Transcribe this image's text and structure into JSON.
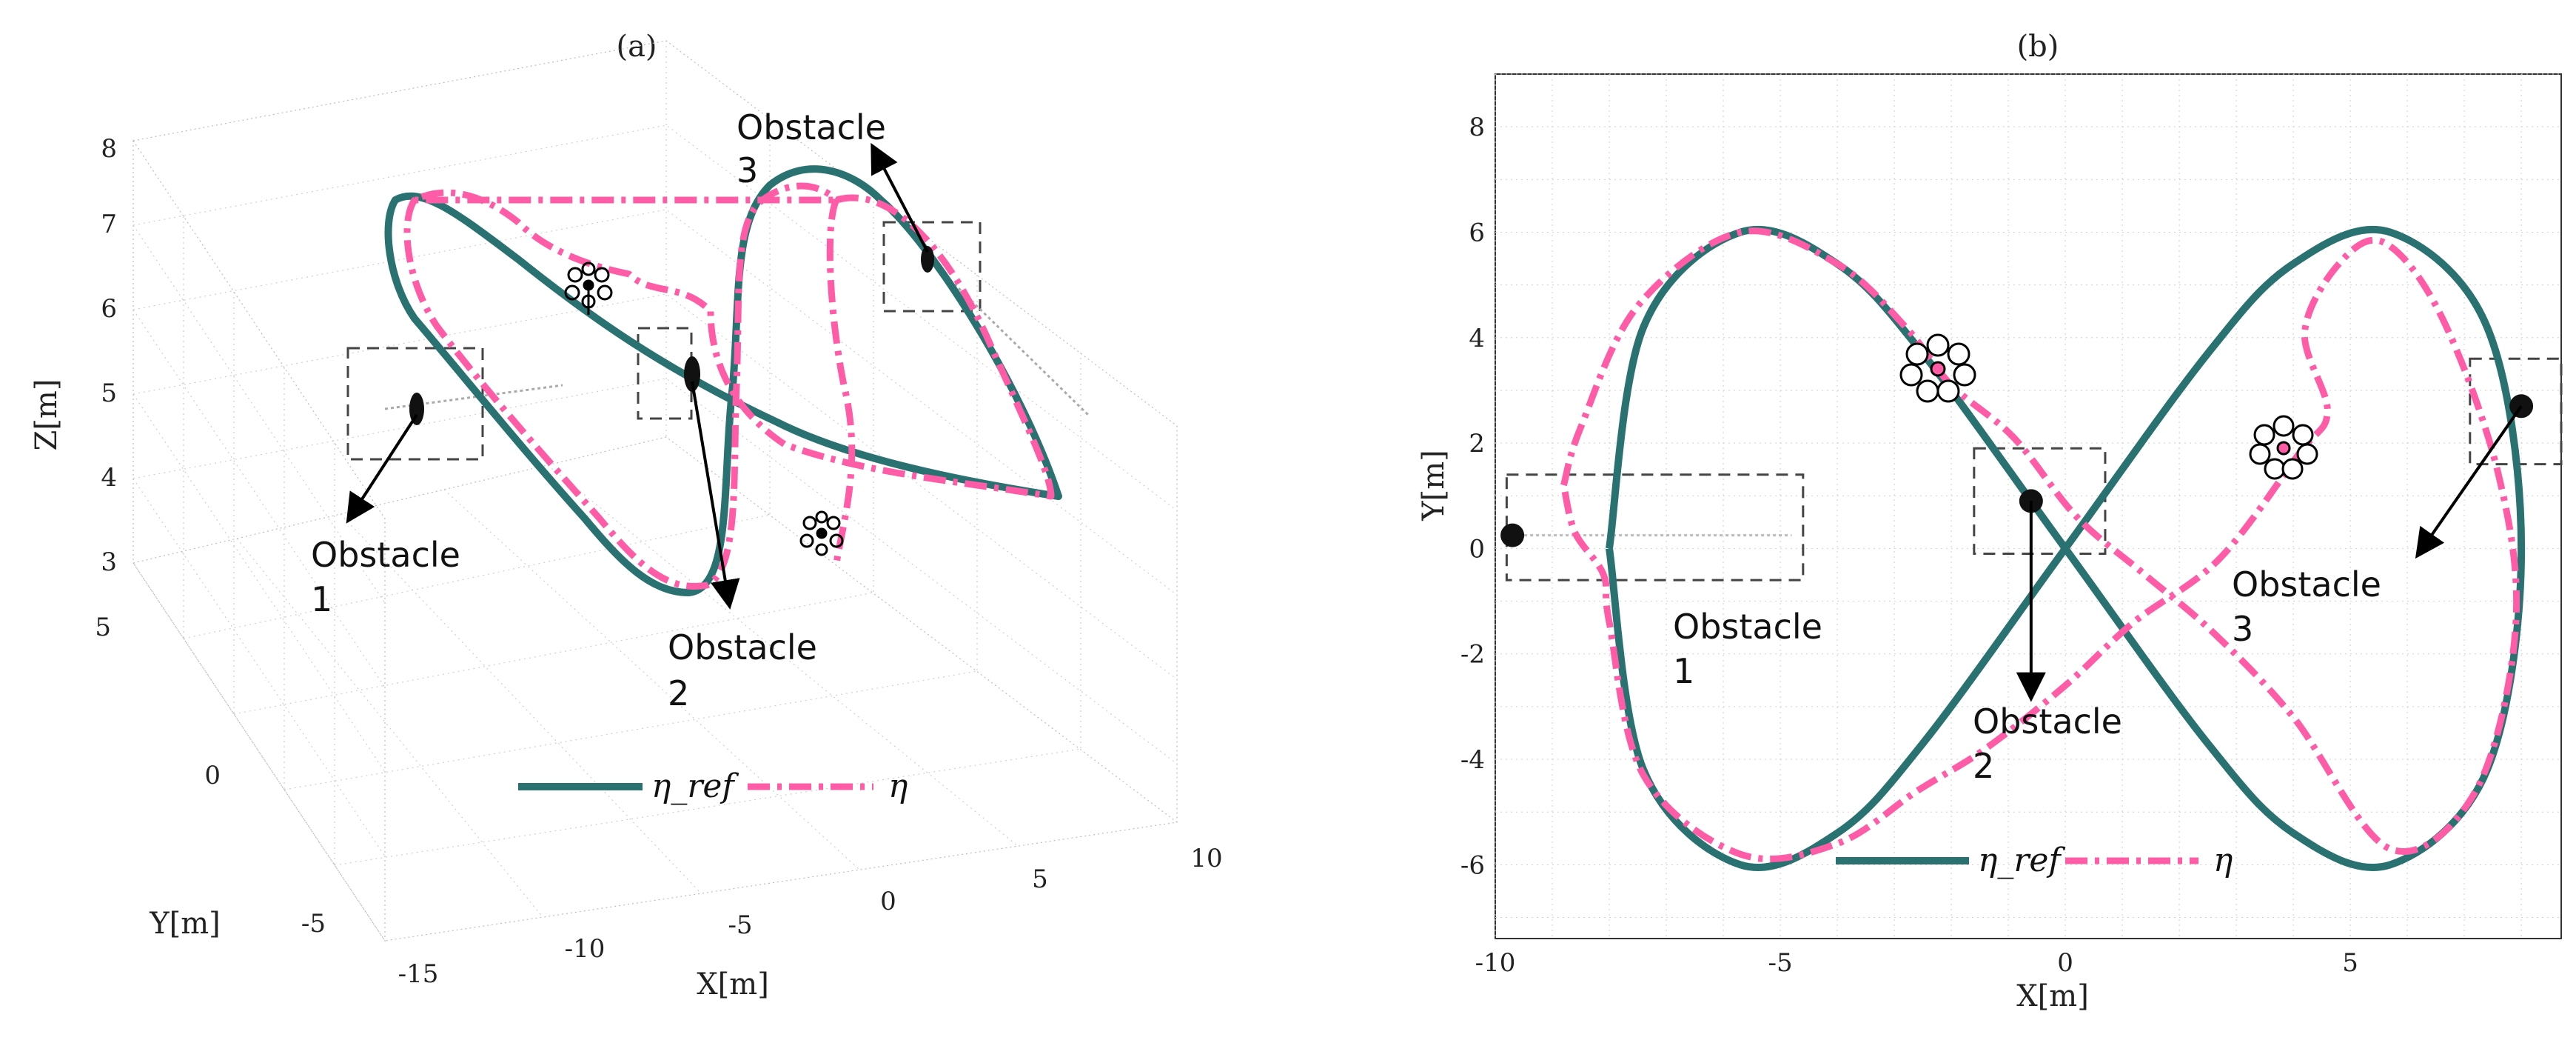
{
  "colors": {
    "reference": "#2a7271",
    "actual": "#ff5ca8",
    "grid": "#c8c8c8"
  },
  "chart_data": [
    {
      "type": "line",
      "panel": "a",
      "title": "(a)",
      "projection": "3d",
      "xlabel": "X[m]",
      "ylabel": "Y[m]",
      "zlabel": "Z[m]",
      "xticks": [
        "-15",
        "-10",
        "-5",
        "0",
        "5",
        "10"
      ],
      "yticks": [
        "-5",
        "0",
        "5"
      ],
      "zticks": [
        "3",
        "4",
        "5",
        "6",
        "7",
        "8"
      ],
      "xlim": [
        -15,
        10
      ],
      "ylim": [
        -7,
        7
      ],
      "zlim": [
        3,
        8
      ],
      "legend": {
        "placement": "bottom-center",
        "entries": [
          "η_ref",
          "η"
        ]
      },
      "series": [
        {
          "name": "η_ref",
          "style": "solid",
          "description": "figure-eight reference trajectory with varying altitude"
        },
        {
          "name": "η",
          "style": "dashed",
          "description": "actual trajectory deviating around obstacles"
        }
      ],
      "annotations": [
        {
          "label": "Obstacle",
          "number": "1"
        },
        {
          "label": "Obstacle",
          "number": "2"
        },
        {
          "label": "Obstacle",
          "number": "3"
        }
      ]
    },
    {
      "type": "line",
      "panel": "b",
      "title": "(b)",
      "projection": "top-view",
      "xlabel": "X[m]",
      "ylabel": "Y[m]",
      "xticks": [
        "-10",
        "-5",
        "0",
        "5"
      ],
      "yticks": [
        "-6",
        "-4",
        "-2",
        "0",
        "2",
        "4",
        "6",
        "8"
      ],
      "xlim": [
        -10,
        8.7
      ],
      "ylim": [
        -7.4,
        9
      ],
      "legend": {
        "placement": "bottom-center",
        "entries": [
          "η_ref",
          "η"
        ]
      },
      "series": [
        {
          "name": "η_ref",
          "style": "solid",
          "x": [
            -8.0,
            -7.4,
            -5.7,
            -4.0,
            -2.5,
            0.0,
            2.5,
            4.0,
            5.7,
            7.4,
            8.0,
            7.4,
            5.7,
            4.0,
            2.5,
            0.0,
            -2.5,
            -4.0,
            -5.7,
            -7.4,
            -8.0
          ],
          "y": [
            0,
            4.2,
            6.0,
            5.4,
            3.7,
            0,
            -3.7,
            -5.4,
            -6.0,
            -4.2,
            0,
            4.2,
            6.0,
            5.4,
            3.7,
            0,
            -3.7,
            -5.4,
            -6.0,
            -4.2,
            0
          ]
        },
        {
          "name": "η",
          "style": "dashed",
          "x": [
            -8.8,
            -8.5,
            -7.5,
            -5.7,
            -4.0,
            -2.8,
            -2.0,
            -0.9,
            0.2,
            1.4,
            2.6,
            4.0,
            5.7,
            7.2,
            7.9,
            7.6,
            6.6,
            5.6,
            4.8,
            4.2,
            4.6,
            4.1,
            2.7,
            1.2,
            0.0,
            -1.4,
            -2.6,
            -4.0,
            -5.7,
            -7.4,
            -8.0,
            -8.1,
            -8.6,
            -8.8
          ],
          "y": [
            1.2,
            2.3,
            4.6,
            6.0,
            5.4,
            4.2,
            3.1,
            2.1,
            0.6,
            -0.5,
            -1.6,
            -3.2,
            -5.7,
            -4.6,
            -1.5,
            1.4,
            4.4,
            5.8,
            5.4,
            4.1,
            2.6,
            1.8,
            -0.2,
            -1.4,
            -2.6,
            -3.8,
            -4.6,
            -5.6,
            -5.8,
            -4.3,
            -1.4,
            -0.5,
            0.3,
            1.2
          ]
        }
      ],
      "annotations": [
        {
          "label": "Obstacle",
          "number": "1",
          "x": -9.7,
          "y": 0.25
        },
        {
          "label": "Obstacle",
          "number": "2",
          "x": -0.6,
          "y": 0.9
        },
        {
          "label": "Obstacle",
          "number": "3",
          "x": 8.0,
          "y": 2.7
        }
      ]
    }
  ]
}
